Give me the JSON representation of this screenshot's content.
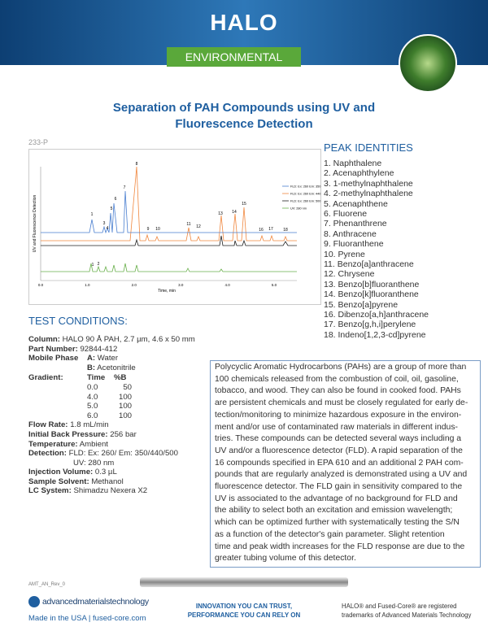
{
  "header": {
    "logo": "HALO",
    "banner": "ENVIRONMENTAL"
  },
  "title": [
    "Separation of PAH Compounds using UV and",
    "Fluorescence Detection"
  ],
  "code": "233-P",
  "chromatogram": {
    "y_axis_label": "UV and Fluorescence Detection",
    "x_axis_label": "Time, min",
    "x_ticks": [
      "0.0",
      "1.0",
      "2.0",
      "3.0",
      "4.0",
      "5.0"
    ],
    "legend": [
      "FLD: Ex: 260  Em: 350",
      "FLD: Ex: 260  Em: 440",
      "FLD: Ex: 260  Em: 500",
      "UV: 280 nm"
    ],
    "peak_labels": [
      "1",
      "3",
      "4",
      "5",
      "6",
      "7",
      "8",
      "9",
      "10",
      "11",
      "12",
      "13",
      "14",
      "15",
      "16",
      "17",
      "18"
    ],
    "uv_peak_labels": [
      "1",
      "2"
    ]
  },
  "peak_identities": {
    "heading": "PEAK IDENTITIES",
    "items": [
      "1. Naphthalene",
      "2. Acenaphthylene",
      "3. 1-methylnaphthalene",
      "4. 2-methylnaphthalene",
      "5. Acenaphthene",
      "6. Fluorene",
      "7. Phenanthrene",
      "8. Anthracene",
      "9. Fluoranthene",
      "10. Pyrene",
      "11. Benzo[a]anthracene",
      "12. Chrysene",
      "13. Benzo[b]fluoranthene",
      "14. Benzo[k]fluoranthene",
      "15. Benzo[a]pyrene",
      "16. Dibenzo[a,h]anthracene",
      "17. Benzo[g,h,i]perylene",
      "18. Indeno[1,2,3-cd]pyrene"
    ]
  },
  "test_conditions": {
    "heading": "TEST CONDITIONS:",
    "column": {
      "label": "Column:",
      "value": "HALO 90 Å PAH, 2.7 µm, 4.6 x 50 mm"
    },
    "part_number": {
      "label": "Part Number:",
      "value": "92844-412"
    },
    "mobile_phase": {
      "label": "Mobile Phase",
      "a_label": "A:",
      "a_value": "Water",
      "b_label": "B:",
      "b_value": "Acetonitrile"
    },
    "gradient": {
      "label": "Gradient:",
      "header": [
        "Time",
        "%B"
      ],
      "rows": [
        [
          "0.0",
          "50"
        ],
        [
          "4.0",
          "100"
        ],
        [
          "5.0",
          "100"
        ],
        [
          "6.0",
          "100"
        ]
      ]
    },
    "flow_rate": {
      "label": "Flow Rate:",
      "value": "1.8 mL/min"
    },
    "back_pressure": {
      "label": "Initial Back Pressure:",
      "value": "256 bar"
    },
    "temperature": {
      "label": "Temperature:",
      "value": "Ambient"
    },
    "detection": {
      "label": "Detection:",
      "value": "FLD: Ex: 260/ Em: 350/440/500",
      "value2": "UV: 280 nm"
    },
    "injection_volume": {
      "label": "Injection Volume:",
      "value": "0.3 µL"
    },
    "sample_solvent": {
      "label": "Sample Solvent:",
      "value": "Methanol"
    },
    "lc_system": {
      "label": "LC System:",
      "value": "Shimadzu Nexera X2"
    }
  },
  "description": [
    "Polycyclic Aromatic Hydrocarbons (PAHs) are a group of more than",
    "100 chemicals released from the combustion of coil, oil, gasoline,",
    "tobacco, and wood. They can also be found in cooked food.  PAHs",
    "are persistent chemicals and must be closely regulated for early de-",
    "tection/monitoring to minimize hazardous exposure in the environ-",
    "ment and/or use of contaminated raw materials in different indus-",
    "tries. These compounds can be detected several ways including a",
    "UV and/or a fluorescence detector (FLD). A rapid separation of the",
    "16 compounds specified in EPA 610 and an additional 2 PAH com-",
    "pounds that are regularly analyzed is demonstrated using a UV and",
    "fluorescence detector. The FLD gain in sensitivity compared to the",
    "UV is associated to the advantage of no background for FLD and",
    "the ability to select both an excitation and emission wavelength;",
    "which can be optimized further with systematically testing the S/N",
    "as a function of the detector's gain parameter. Slight retention",
    "time and peak width increases for the FLD response are due to the",
    "greater tubing volume of this detector."
  ],
  "footer": {
    "doc_id": "AMT_AN_Rev_0",
    "company": "advancedmaterialstechnology",
    "made_in": "Made in the USA | fused-core.com",
    "tagline": [
      "INNOVATION YOU CAN TRUST,",
      "PERFORMANCE YOU CAN RELY ON"
    ],
    "trademark": [
      "HALO® and Fused-Core® are registered",
      "trademarks of Advanced Materials Technology"
    ]
  }
}
